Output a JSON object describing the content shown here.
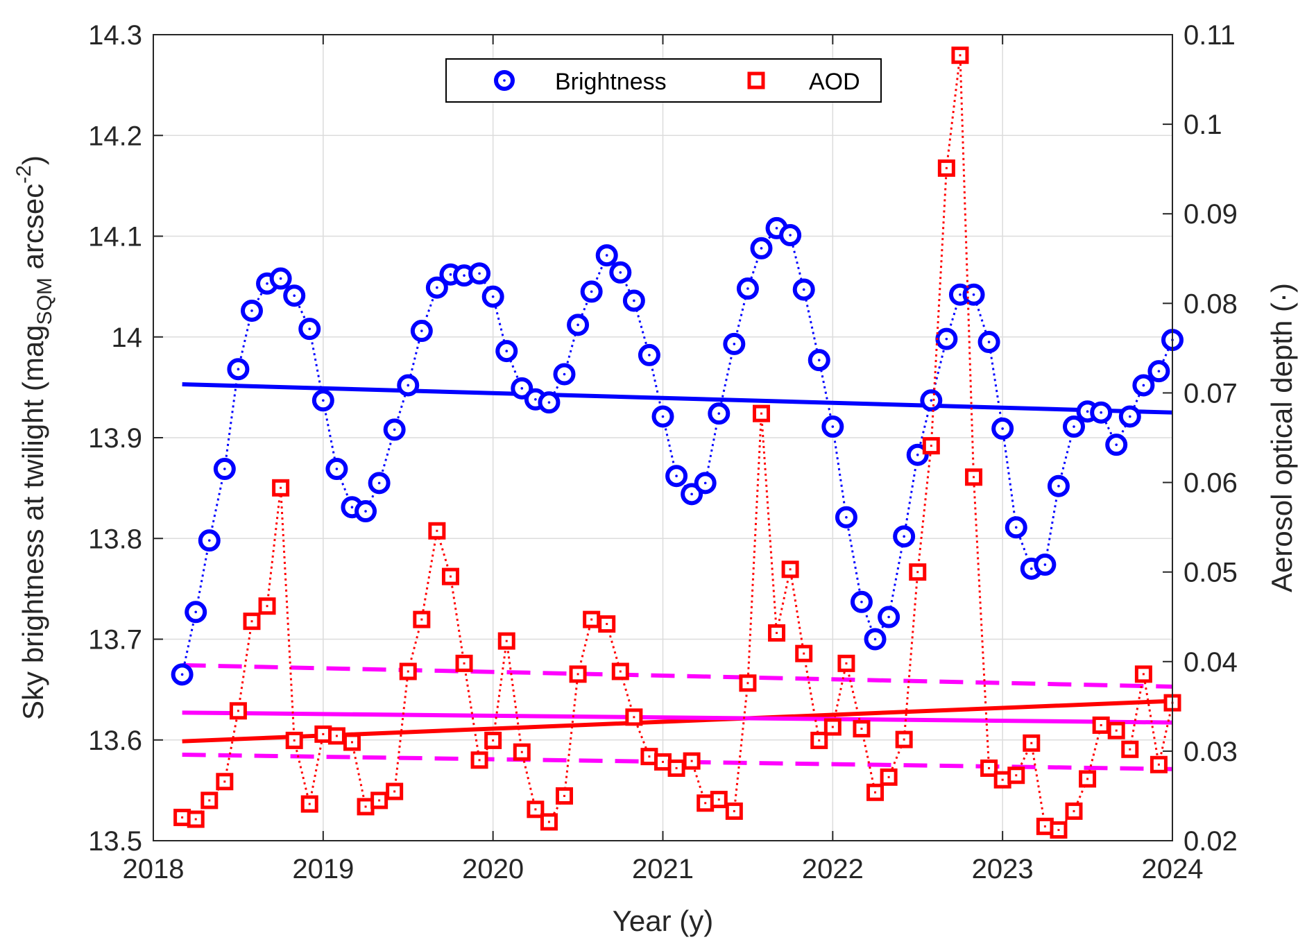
{
  "chart_data": {
    "type": "line",
    "xlabel": "Year (y)",
    "ylabel_left": {
      "prefix": "Sky brightness at twilight (mag",
      "sub": "SQM",
      "mid": " arcsec",
      "sup": "-2",
      "suffix": ")"
    },
    "ylabel_right": "Aerosol optical depth (·)",
    "xlim": [
      2018,
      2024
    ],
    "ylim_left": [
      13.5,
      14.3
    ],
    "ylim_right": [
      0.02,
      0.11
    ],
    "xticks": [
      "2018",
      "2019",
      "2020",
      "2021",
      "2022",
      "2023",
      "2024"
    ],
    "yticks_left": [
      "13.5",
      "13.6",
      "13.7",
      "13.8",
      "13.9",
      "14",
      "14.1",
      "14.2",
      "14.3"
    ],
    "yticks_right": [
      "0.02",
      "0.03",
      "0.04",
      "0.05",
      "0.06",
      "0.07",
      "0.08",
      "0.09",
      "0.1",
      "0.11"
    ],
    "grid": true,
    "legend_position": "top-center",
    "series": [
      {
        "name": "Brightness",
        "axis": "left",
        "color": "#0000ff",
        "marker": "circle",
        "x": [
          2018.17,
          2018.25,
          2018.33,
          2018.42,
          2018.5,
          2018.58,
          2018.67,
          2018.75,
          2018.83,
          2018.92,
          2019.0,
          2019.08,
          2019.17,
          2019.25,
          2019.33,
          2019.42,
          2019.5,
          2019.58,
          2019.67,
          2019.75,
          2019.83,
          2019.92,
          2020.0,
          2020.08,
          2020.17,
          2020.25,
          2020.33,
          2020.42,
          2020.5,
          2020.58,
          2020.67,
          2020.75,
          2020.83,
          2020.92,
          2021.0,
          2021.08,
          2021.17,
          2021.25,
          2021.33,
          2021.42,
          2021.5,
          2021.58,
          2021.67,
          2021.75,
          2021.83,
          2021.92,
          2022.0,
          2022.08,
          2022.17,
          2022.25,
          2022.33,
          2022.42,
          2022.5,
          2022.58,
          2022.67,
          2022.75,
          2022.83,
          2022.92,
          2023.0,
          2023.08,
          2023.17,
          2023.25,
          2023.33,
          2023.42,
          2023.5,
          2023.58,
          2023.67,
          2023.75,
          2023.83,
          2023.92,
          2024.0
        ],
        "values": [
          13.665,
          13.727,
          13.798,
          13.869,
          13.968,
          14.026,
          14.053,
          14.058,
          14.041,
          14.008,
          13.937,
          13.869,
          13.831,
          13.827,
          13.855,
          13.908,
          13.952,
          14.006,
          14.049,
          14.062,
          14.061,
          14.063,
          14.04,
          13.986,
          13.949,
          13.938,
          13.935,
          13.963,
          14.012,
          14.045,
          14.081,
          14.064,
          14.036,
          13.982,
          13.921,
          13.862,
          13.844,
          13.855,
          13.924,
          13.993,
          14.048,
          14.088,
          14.108,
          14.101,
          14.047,
          13.977,
          13.911,
          13.821,
          13.737,
          13.7,
          13.722,
          13.802,
          13.883,
          13.937,
          13.998,
          14.042,
          14.042,
          13.995,
          13.909,
          13.811,
          13.77,
          13.774,
          13.852,
          13.911,
          13.926,
          13.925,
          13.893,
          13.921,
          13.952,
          13.966,
          13.997
        ]
      },
      {
        "name": "AOD",
        "axis": "right",
        "color": "#ff0000",
        "marker": "square",
        "x": [
          2018.17,
          2018.25,
          2018.33,
          2018.42,
          2018.5,
          2018.58,
          2018.67,
          2018.75,
          2018.83,
          2018.92,
          2019.0,
          2019.08,
          2019.17,
          2019.25,
          2019.33,
          2019.42,
          2019.5,
          2019.58,
          2019.67,
          2019.75,
          2019.83,
          2019.92,
          2020.0,
          2020.08,
          2020.17,
          2020.25,
          2020.33,
          2020.42,
          2020.5,
          2020.58,
          2020.67,
          2020.75,
          2020.83,
          2020.92,
          2021.0,
          2021.08,
          2021.17,
          2021.25,
          2021.33,
          2021.42,
          2021.5,
          2021.58,
          2021.67,
          2021.75,
          2021.83,
          2021.92,
          2022.0,
          2022.08,
          2022.17,
          2022.25,
          2022.33,
          2022.42,
          2022.5,
          2022.58,
          2022.67,
          2022.75,
          2022.83,
          2022.92,
          2023.0,
          2023.08,
          2023.17,
          2023.25,
          2023.33,
          2023.42,
          2023.5,
          2023.58,
          2023.67,
          2023.75,
          2023.83,
          2023.92,
          2024.0
        ],
        "values": [
          0.0226,
          0.0224,
          0.0245,
          0.0266,
          0.0345,
          0.0445,
          0.0462,
          0.0594,
          0.0312,
          0.0241,
          0.0319,
          0.0317,
          0.031,
          0.0238,
          0.0245,
          0.0255,
          0.0389,
          0.0447,
          0.0546,
          0.0495,
          0.0398,
          0.029,
          0.0312,
          0.0423,
          0.0299,
          0.0235,
          0.0221,
          0.025,
          0.0386,
          0.0447,
          0.0442,
          0.0389,
          0.0338,
          0.0294,
          0.0288,
          0.0281,
          0.0289,
          0.0242,
          0.0246,
          0.0233,
          0.0376,
          0.0677,
          0.0432,
          0.0503,
          0.0409,
          0.0312,
          0.0327,
          0.0398,
          0.0325,
          0.0254,
          0.0271,
          0.0313,
          0.05,
          0.0641,
          0.0951,
          0.1077,
          0.0606,
          0.0281,
          0.0268,
          0.0273,
          0.0309,
          0.0216,
          0.0212,
          0.0233,
          0.0269,
          0.0329,
          0.0323,
          0.0302,
          0.0386,
          0.0285,
          0.0354
        ]
      }
    ],
    "trend_lines": [
      {
        "series": "Brightness",
        "axis": "left",
        "color": "#0000ff",
        "style": "solid",
        "x": [
          2018.17,
          2024.0
        ],
        "y": [
          13.953,
          13.925
        ]
      },
      {
        "series": "AOD",
        "axis": "right",
        "color": "#ff0000",
        "style": "solid",
        "x": [
          2018.17,
          2024.0
        ],
        "y": [
          0.0311,
          0.0356
        ]
      },
      {
        "series": "AOD",
        "axis": "right",
        "color": "#ff00ff",
        "style": "solid",
        "x": [
          2018.17,
          2024.0
        ],
        "y": [
          0.0343,
          0.0332
        ]
      },
      {
        "series": "AOD",
        "axis": "right",
        "color": "#ff00ff",
        "style": "dashed",
        "x": [
          2018.17,
          2024.0
        ],
        "y": [
          0.0396,
          0.0372
        ]
      },
      {
        "series": "AOD",
        "axis": "right",
        "color": "#ff00ff",
        "style": "dashed",
        "x": [
          2018.17,
          2024.0
        ],
        "y": [
          0.0296,
          0.028
        ]
      }
    ]
  }
}
